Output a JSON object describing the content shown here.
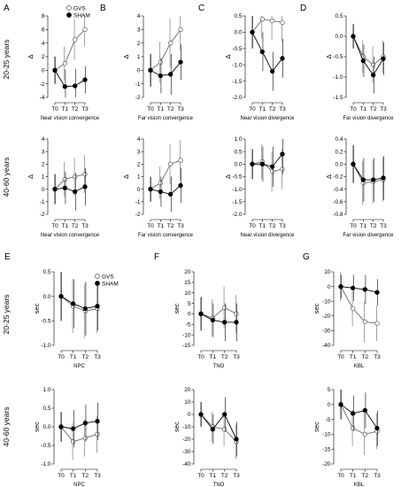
{
  "row_labels": [
    "20-25 years",
    "40-60 years",
    "20-25 years",
    "40-60 years"
  ],
  "legend": {
    "gvs": "GVS",
    "sham": "SHAM"
  },
  "chart_data": [
    {
      "type": "line",
      "letter": "A",
      "title": "",
      "xlabel": "Near vision convergence",
      "ylabel": "Δ",
      "categories": [
        "T0",
        "T1",
        "T2",
        "T3"
      ],
      "ylim": [
        -4,
        8
      ],
      "yticks": [
        -4,
        -2,
        0,
        2,
        4,
        6,
        8
      ],
      "show_legend": true,
      "series": [
        {
          "name": "GVS",
          "values": [
            0,
            1,
            4.5,
            6
          ],
          "err": [
            2,
            2.5,
            3,
            2.5
          ]
        },
        {
          "name": "SHAM",
          "values": [
            0,
            -2.4,
            -2.3,
            -1.4
          ],
          "err": [
            2,
            2.5,
            2.5,
            2
          ]
        }
      ]
    },
    {
      "type": "line",
      "letter": "B",
      "title": "",
      "xlabel": "Far vision convergence",
      "ylabel": "Δ",
      "categories": [
        "T0",
        "T1",
        "T2",
        "T3"
      ],
      "ylim": [
        -2,
        4
      ],
      "yticks": [
        -2,
        -1,
        0,
        1,
        2,
        3,
        4
      ],
      "show_legend": false,
      "series": [
        {
          "name": "GVS",
          "values": [
            0,
            0.6,
            2.0,
            3.0
          ],
          "err": [
            1.2,
            1.5,
            1.8,
            1.5
          ]
        },
        {
          "name": "SHAM",
          "values": [
            0,
            -0.4,
            -0.3,
            0.6
          ],
          "err": [
            1.2,
            1.3,
            1.5,
            1.3
          ]
        }
      ]
    },
    {
      "type": "line",
      "letter": "C",
      "title": "",
      "xlabel": "Near vision divergence",
      "ylabel": "Δ",
      "categories": [
        "T0",
        "T1",
        "T2",
        "T3"
      ],
      "ylim": [
        -2,
        0.5
      ],
      "yticks": [
        -2.0,
        -1.5,
        -1.0,
        -0.5,
        0.0,
        0.5
      ],
      "show_legend": false,
      "series": [
        {
          "name": "GVS",
          "values": [
            0,
            0.4,
            0.35,
            0.3
          ],
          "err": [
            0.5,
            0.6,
            0.6,
            0.6
          ]
        },
        {
          "name": "SHAM",
          "values": [
            0,
            -0.6,
            -1.2,
            -0.8
          ],
          "err": [
            0.5,
            0.6,
            0.6,
            0.6
          ]
        }
      ]
    },
    {
      "type": "line",
      "letter": "D",
      "title": "",
      "xlabel": "Far vision divergence",
      "ylabel": "Δ",
      "categories": [
        "T0",
        "T1",
        "T2",
        "T3"
      ],
      "ylim": [
        -1.5,
        0.5
      ],
      "yticks": [
        -1.5,
        -1.0,
        -0.5,
        0.0,
        0.5
      ],
      "show_legend": false,
      "series": [
        {
          "name": "GVS",
          "values": [
            0,
            -0.5,
            -0.7,
            -0.5
          ],
          "err": [
            0.3,
            0.4,
            0.45,
            0.4
          ]
        },
        {
          "name": "SHAM",
          "values": [
            0,
            -0.6,
            -0.95,
            -0.55
          ],
          "err": [
            0.3,
            0.4,
            0.45,
            0.4
          ]
        }
      ]
    },
    {
      "type": "line",
      "letter": "",
      "title": "",
      "xlabel": "Near vision convergence",
      "ylabel": "Δ",
      "categories": [
        "T0",
        "T1",
        "T2",
        "T3"
      ],
      "ylim": [
        -2,
        4
      ],
      "yticks": [
        -2,
        -1,
        0,
        1,
        2,
        3,
        4
      ],
      "show_legend": false,
      "series": [
        {
          "name": "GVS",
          "values": [
            0,
            0.8,
            1.0,
            1.2
          ],
          "err": [
            1.2,
            1.4,
            1.5,
            1.5
          ]
        },
        {
          "name": "SHAM",
          "values": [
            0,
            0.1,
            -0.2,
            0.2
          ],
          "err": [
            1.2,
            1.3,
            1.5,
            1.5
          ]
        }
      ]
    },
    {
      "type": "line",
      "letter": "",
      "title": "",
      "xlabel": "Far vision convergence",
      "ylabel": "Δ",
      "categories": [
        "T0",
        "T1",
        "T2",
        "T3"
      ],
      "ylim": [
        -2,
        4
      ],
      "yticks": [
        -2,
        -1,
        0,
        1,
        2,
        3,
        4
      ],
      "show_legend": false,
      "series": [
        {
          "name": "GVS",
          "values": [
            0,
            0.5,
            2.0,
            2.3
          ],
          "err": [
            1.0,
            1.3,
            1.6,
            1.6
          ]
        },
        {
          "name": "SHAM",
          "values": [
            0,
            -0.2,
            -0.4,
            0.3
          ],
          "err": [
            1.0,
            1.2,
            1.4,
            1.4
          ]
        }
      ]
    },
    {
      "type": "line",
      "letter": "",
      "title": "",
      "xlabel": "Near vision divergence",
      "ylabel": "Δ",
      "categories": [
        "T0",
        "T1",
        "T2",
        "T3"
      ],
      "ylim": [
        -2,
        1.0
      ],
      "yticks": [
        -2.0,
        -1.5,
        -1.0,
        -0.5,
        0.0,
        0.5,
        1.0
      ],
      "show_legend": false,
      "series": [
        {
          "name": "GVS",
          "values": [
            0,
            0.1,
            -0.3,
            -0.2
          ],
          "err": [
            0.6,
            0.7,
            0.8,
            0.8
          ]
        },
        {
          "name": "SHAM",
          "values": [
            0,
            0.0,
            -0.1,
            0.4
          ],
          "err": [
            0.6,
            0.7,
            0.8,
            0.8
          ]
        }
      ]
    },
    {
      "type": "line",
      "letter": "",
      "title": "",
      "xlabel": "Far vision divergence",
      "ylabel": "Δ",
      "categories": [
        "T0",
        "T1",
        "T2",
        "T3"
      ],
      "ylim": [
        -0.8,
        0.4
      ],
      "yticks": [
        -0.8,
        -0.6,
        -0.4,
        -0.2,
        0.0,
        0.2,
        0.4
      ],
      "show_legend": false,
      "series": [
        {
          "name": "GVS",
          "values": [
            0,
            -0.3,
            -0.28,
            -0.25
          ],
          "err": [
            0.3,
            0.35,
            0.35,
            0.35
          ]
        },
        {
          "name": "SHAM",
          "values": [
            0,
            -0.25,
            -0.25,
            -0.22
          ],
          "err": [
            0.3,
            0.35,
            0.35,
            0.35
          ]
        }
      ]
    },
    {
      "type": "line",
      "letter": "E",
      "title": "",
      "xlabel": "NPC",
      "ylabel": "sec",
      "categories": [
        "T0",
        "T1",
        "T2",
        "T3"
      ],
      "ylim": [
        -1.0,
        0.5
      ],
      "yticks": [
        -1.0,
        -0.5,
        0.0,
        0.5
      ],
      "show_legend": true,
      "series": [
        {
          "name": "GVS",
          "values": [
            0,
            -0.2,
            -0.3,
            -0.25
          ],
          "err": [
            0.5,
            0.55,
            0.55,
            0.5
          ]
        },
        {
          "name": "SHAM",
          "values": [
            0,
            -0.15,
            -0.25,
            -0.2
          ],
          "err": [
            0.5,
            0.5,
            0.55,
            0.5
          ]
        }
      ]
    },
    {
      "type": "line",
      "letter": "F",
      "title": "",
      "xlabel": "TNO",
      "ylabel": "sec",
      "categories": [
        "T0",
        "T1",
        "T2",
        "T3"
      ],
      "ylim": [
        -15,
        20
      ],
      "yticks": [
        -15,
        -10,
        -5,
        0,
        5,
        10,
        15,
        20
      ],
      "show_legend": false,
      "series": [
        {
          "name": "GVS",
          "values": [
            0,
            -2,
            3,
            0
          ],
          "err": [
            8,
            9,
            10,
            9
          ]
        },
        {
          "name": "SHAM",
          "values": [
            0,
            -3,
            -4,
            -4
          ],
          "err": [
            8,
            8,
            9,
            9
          ]
        }
      ]
    },
    {
      "type": "line",
      "letter": "G",
      "title": "",
      "xlabel": "KBL",
      "ylabel": "sec",
      "categories": [
        "T0",
        "T1",
        "T2",
        "T3"
      ],
      "ylim": [
        -40,
        10
      ],
      "yticks": [
        -40,
        -30,
        -20,
        -10,
        0,
        10
      ],
      "show_legend": false,
      "series": [
        {
          "name": "GVS",
          "values": [
            0,
            -15,
            -24,
            -25
          ],
          "err": [
            10,
            12,
            14,
            12
          ]
        },
        {
          "name": "SHAM",
          "values": [
            0,
            -1,
            -2,
            -4
          ],
          "err": [
            8,
            9,
            10,
            9
          ]
        }
      ]
    },
    {
      "type": "line",
      "letter": "",
      "title": "",
      "xlabel": "NPC",
      "ylabel": "sec",
      "categories": [
        "T0",
        "T1",
        "T2",
        "T3"
      ],
      "ylim": [
        -1.0,
        1.0
      ],
      "yticks": [
        -1.0,
        -0.5,
        0.0,
        0.5,
        1.0
      ],
      "show_legend": false,
      "series": [
        {
          "name": "GVS",
          "values": [
            0,
            -0.4,
            -0.3,
            -0.2
          ],
          "err": [
            0.4,
            0.5,
            0.5,
            0.5
          ]
        },
        {
          "name": "SHAM",
          "values": [
            0,
            -0.05,
            0.1,
            0.15
          ],
          "err": [
            0.4,
            0.5,
            0.5,
            0.5
          ]
        }
      ]
    },
    {
      "type": "line",
      "letter": "",
      "title": "",
      "xlabel": "TNO",
      "ylabel": "sec",
      "categories": [
        "T0",
        "T1",
        "T2",
        "T3"
      ],
      "ylim": [
        -40,
        20
      ],
      "yticks": [
        -40,
        -30,
        -20,
        -10,
        0,
        10,
        20
      ],
      "show_legend": false,
      "series": [
        {
          "name": "GVS",
          "values": [
            0,
            -10,
            -12,
            -22
          ],
          "err": [
            10,
            12,
            14,
            14
          ]
        },
        {
          "name": "SHAM",
          "values": [
            0,
            -12,
            0,
            -20
          ],
          "err": [
            10,
            12,
            14,
            14
          ]
        }
      ]
    },
    {
      "type": "line",
      "letter": "",
      "title": "",
      "xlabel": "KBL",
      "ylabel": "sec",
      "categories": [
        "T0",
        "T1",
        "T2",
        "T3"
      ],
      "ylim": [
        -20,
        5
      ],
      "yticks": [
        -20,
        -15,
        -10,
        -5,
        0,
        5
      ],
      "show_legend": false,
      "series": [
        {
          "name": "GVS",
          "values": [
            0,
            -8,
            -10,
            -9
          ],
          "err": [
            5,
            6,
            7,
            6
          ]
        },
        {
          "name": "SHAM",
          "values": [
            0,
            -3,
            -2,
            -8
          ],
          "err": [
            5,
            6,
            6,
            6
          ]
        }
      ]
    }
  ]
}
